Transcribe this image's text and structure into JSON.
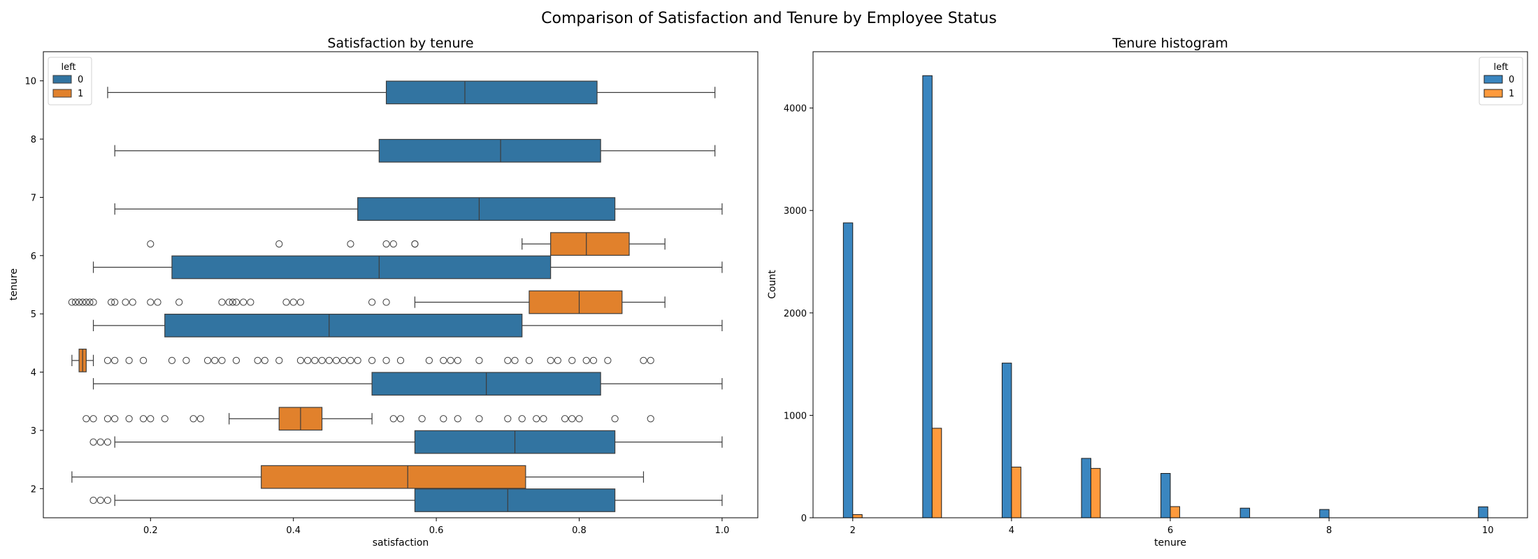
{
  "figure": {
    "suptitle": "Comparison of Satisfaction and Tenure by Employee Status"
  },
  "colors": {
    "stay": "#3274a1",
    "left": "#e1812c",
    "stay_hist": "#3a86c0",
    "left_hist": "#ff9a3c"
  },
  "chart_data": [
    {
      "type": "boxplot",
      "orientation": "horizontal",
      "title": "Satisfaction by tenure",
      "xlabel": "satisfaction",
      "ylabel": "tenure",
      "xlim": [
        0.05,
        1.05
      ],
      "xticks": [
        0.2,
        0.4,
        0.6,
        0.8,
        1.0
      ],
      "xtick_labels": [
        "0.2",
        "0.4",
        "0.6",
        "0.8",
        "1.0"
      ],
      "categories": [
        "10",
        "8",
        "7",
        "6",
        "5",
        "4",
        "3",
        "2"
      ],
      "legend": {
        "title": "left",
        "entries": [
          "0",
          "1"
        ],
        "placement": "upper left"
      },
      "series": [
        {
          "name": "0",
          "boxes": [
            {
              "category": "10",
              "whisker_low": 0.14,
              "q1": 0.53,
              "median": 0.64,
              "q3": 0.825,
              "whisker_high": 0.99,
              "outliers": []
            },
            {
              "category": "8",
              "whisker_low": 0.15,
              "q1": 0.52,
              "median": 0.69,
              "q3": 0.83,
              "whisker_high": 0.99,
              "outliers": []
            },
            {
              "category": "7",
              "whisker_low": 0.15,
              "q1": 0.49,
              "median": 0.66,
              "q3": 0.85,
              "whisker_high": 1.0,
              "outliers": []
            },
            {
              "category": "6",
              "whisker_low": 0.12,
              "q1": 0.23,
              "median": 0.52,
              "q3": 0.76,
              "whisker_high": 1.0,
              "outliers": []
            },
            {
              "category": "5",
              "whisker_low": 0.12,
              "q1": 0.22,
              "median": 0.45,
              "q3": 0.72,
              "whisker_high": 1.0,
              "outliers": []
            },
            {
              "category": "4",
              "whisker_low": 0.12,
              "q1": 0.51,
              "median": 0.67,
              "q3": 0.83,
              "whisker_high": 1.0,
              "outliers": []
            },
            {
              "category": "3",
              "whisker_low": 0.15,
              "q1": 0.57,
              "median": 0.71,
              "q3": 0.85,
              "whisker_high": 1.0,
              "outliers": [
                0.12,
                0.13,
                0.14
              ]
            },
            {
              "category": "2",
              "whisker_low": 0.15,
              "q1": 0.57,
              "median": 0.7,
              "q3": 0.85,
              "whisker_high": 1.0,
              "outliers": [
                0.12,
                0.13,
                0.14
              ]
            }
          ]
        },
        {
          "name": "1",
          "boxes": [
            {
              "category": "6",
              "whisker_low": 0.72,
              "q1": 0.76,
              "median": 0.81,
              "q3": 0.87,
              "whisker_high": 0.92,
              "outliers": [
                0.2,
                0.38,
                0.48,
                0.53,
                0.54,
                0.57,
                0.57
              ]
            },
            {
              "category": "5",
              "whisker_low": 0.57,
              "q1": 0.73,
              "median": 0.8,
              "q3": 0.86,
              "whisker_high": 0.92,
              "outliers": [
                0.09,
                0.095,
                0.1,
                0.105,
                0.11,
                0.115,
                0.12,
                0.145,
                0.15,
                0.165,
                0.175,
                0.2,
                0.21,
                0.24,
                0.3,
                0.31,
                0.315,
                0.32,
                0.33,
                0.34,
                0.39,
                0.4,
                0.41,
                0.51,
                0.53
              ]
            },
            {
              "category": "4",
              "whisker_low": 0.09,
              "q1": 0.1,
              "median": 0.105,
              "q3": 0.11,
              "whisker_high": 0.12,
              "outliers": [
                0.14,
                0.15,
                0.17,
                0.19,
                0.23,
                0.25,
                0.28,
                0.29,
                0.3,
                0.32,
                0.35,
                0.36,
                0.38,
                0.41,
                0.42,
                0.43,
                0.44,
                0.45,
                0.46,
                0.47,
                0.48,
                0.49,
                0.51,
                0.53,
                0.55,
                0.59,
                0.61,
                0.62,
                0.63,
                0.66,
                0.7,
                0.71,
                0.73,
                0.76,
                0.77,
                0.79,
                0.81,
                0.82,
                0.84,
                0.89,
                0.9
              ]
            },
            {
              "category": "3",
              "whisker_low": 0.31,
              "q1": 0.38,
              "median": 0.41,
              "q3": 0.44,
              "whisker_high": 0.51,
              "outliers": [
                0.11,
                0.12,
                0.14,
                0.15,
                0.17,
                0.19,
                0.2,
                0.22,
                0.26,
                0.27,
                0.54,
                0.55,
                0.58,
                0.61,
                0.63,
                0.66,
                0.7,
                0.72,
                0.74,
                0.75,
                0.78,
                0.79,
                0.8,
                0.85,
                0.9
              ]
            },
            {
              "category": "2",
              "whisker_low": 0.09,
              "q1": 0.355,
              "median": 0.56,
              "q3": 0.725,
              "whisker_high": 0.89,
              "outliers": []
            }
          ]
        }
      ]
    },
    {
      "type": "bar",
      "title": "Tenure histogram",
      "xlabel": "tenure",
      "ylabel": "Count",
      "xlim": [
        1.5,
        10.5
      ],
      "ylim": [
        0,
        4550
      ],
      "xticks": [
        2,
        4,
        6,
        8,
        10
      ],
      "xtick_labels": [
        "2",
        "4",
        "6",
        "8",
        "10"
      ],
      "yticks": [
        0,
        1000,
        2000,
        3000,
        4000
      ],
      "ytick_labels": [
        "0",
        "1000",
        "2000",
        "3000",
        "4000"
      ],
      "legend": {
        "title": "left",
        "entries": [
          "0",
          "1"
        ],
        "placement": "upper right"
      },
      "categories": [
        2,
        3,
        4,
        5,
        6,
        7,
        8,
        10
      ],
      "series": [
        {
          "name": "0",
          "values": [
            2879,
            4316,
            1510,
            580,
            433,
            94,
            81,
            107
          ]
        },
        {
          "name": "1",
          "values": [
            31,
            874,
            495,
            482,
            109,
            0,
            0,
            0
          ]
        }
      ]
    }
  ]
}
